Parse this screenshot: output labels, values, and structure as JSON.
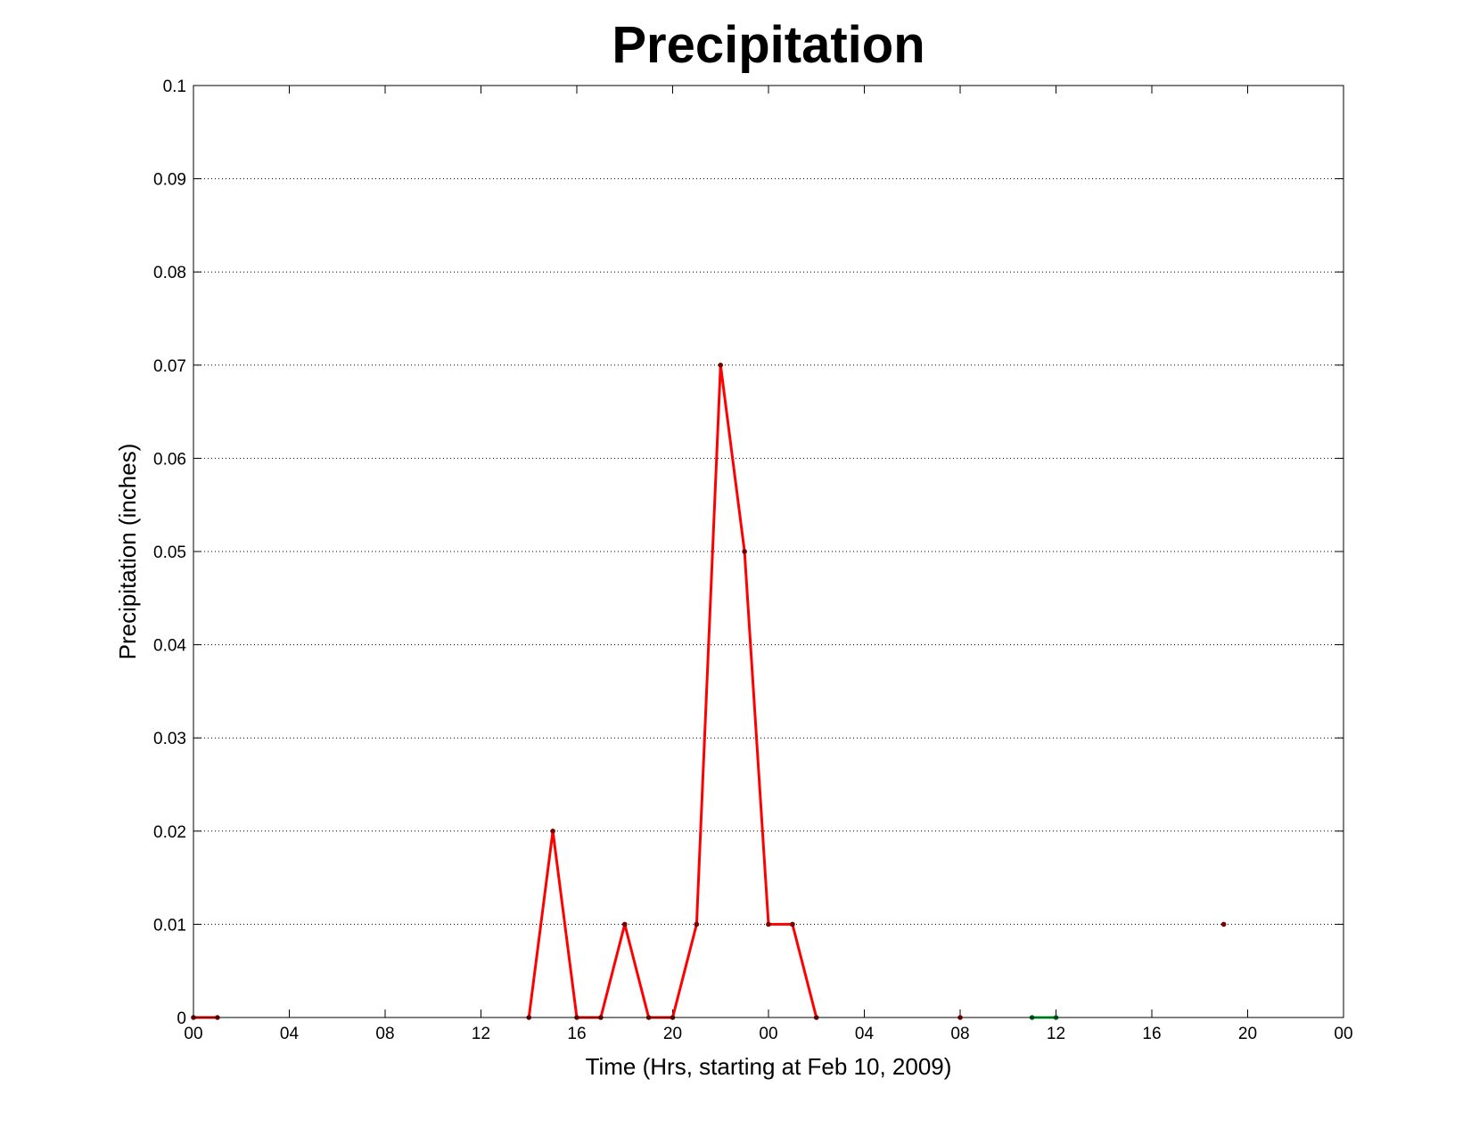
{
  "chart_data": {
    "type": "line",
    "title": "Precipitation",
    "xlabel": "Time (Hrs, starting at Feb 10, 2009)",
    "ylabel": "Precipitation (inches)",
    "xlim": [
      0,
      48
    ],
    "ylim": [
      0,
      0.1
    ],
    "x_ticks": [
      0,
      4,
      8,
      12,
      16,
      20,
      24,
      28,
      32,
      36,
      40,
      44,
      48
    ],
    "x_tick_labels": [
      "00",
      "04",
      "08",
      "12",
      "16",
      "20",
      "00",
      "04",
      "08",
      "12",
      "16",
      "20",
      "00"
    ],
    "y_ticks": [
      0,
      0.01,
      0.02,
      0.03,
      0.04,
      0.05,
      0.06,
      0.07,
      0.08,
      0.09,
      0.1
    ],
    "y_tick_labels": [
      "0",
      "0.01",
      "0.02",
      "0.03",
      "0.04",
      "0.05",
      "0.06",
      "0.07",
      "0.08",
      "0.09",
      "0.1"
    ],
    "grid": true,
    "series": [
      {
        "color": "#ff0000",
        "marker_color": "#7a0000",
        "segments": [
          {
            "x": [
              0,
              1
            ],
            "y": [
              0,
              0
            ]
          },
          {
            "x": [
              14,
              15,
              16,
              17,
              18,
              19,
              20,
              21,
              22,
              23,
              24,
              25,
              26
            ],
            "y": [
              0,
              0.02,
              0,
              0,
              0.01,
              0,
              0,
              0.01,
              0.07,
              0.05,
              0.01,
              0.01,
              0
            ]
          },
          {
            "x": [
              32
            ],
            "y": [
              0
            ]
          },
          {
            "x": [
              43
            ],
            "y": [
              0.01
            ]
          }
        ]
      },
      {
        "color": "#00cc44",
        "marker_color": "#006622",
        "segments": [
          {
            "x": [
              35,
              36
            ],
            "y": [
              0,
              0
            ]
          }
        ]
      }
    ]
  }
}
